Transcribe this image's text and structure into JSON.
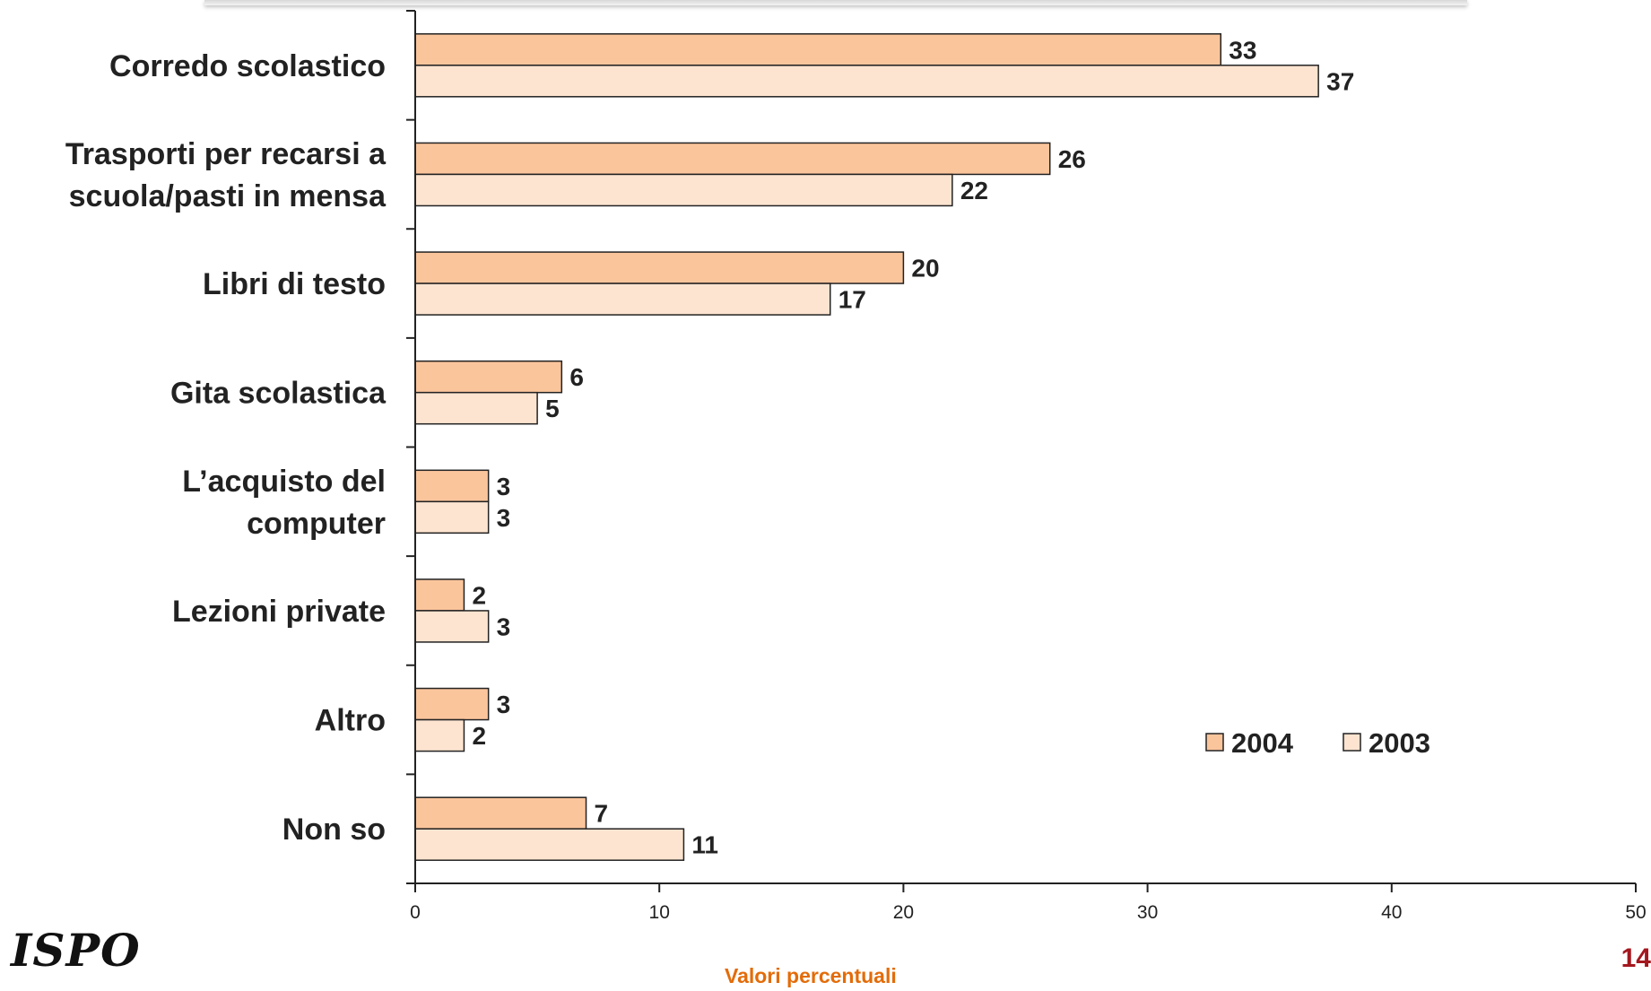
{
  "page": {
    "logo": "ISPO",
    "page_number": "14",
    "x_caption": "Valori percentuali"
  },
  "colors": {
    "series_2004": "#fbc59c",
    "series_2003": "#fde4d0",
    "caption": "#e36c09",
    "page_number": "#a3171e",
    "bar_border": "#222222"
  },
  "chart_data": {
    "type": "bar",
    "orientation": "horizontal",
    "categories": [
      [
        "Corredo scolastico"
      ],
      [
        "Trasporti per recarsi a",
        "scuola/pasti in mensa"
      ],
      [
        "Libri di testo"
      ],
      [
        "Gita scolastica"
      ],
      [
        "L’acquisto del",
        "computer"
      ],
      [
        "Lezioni private"
      ],
      [
        "Altro"
      ],
      [
        "Non so"
      ]
    ],
    "series": [
      {
        "name": "2004",
        "values": [
          33,
          26,
          20,
          6,
          3,
          2,
          3,
          7
        ]
      },
      {
        "name": "2003",
        "values": [
          37,
          22,
          17,
          5,
          3,
          3,
          2,
          11
        ]
      }
    ],
    "xlim": [
      0,
      50
    ],
    "xticks": [
      0,
      10,
      20,
      30,
      40,
      50
    ],
    "xlabel": "Valori percentuali",
    "ylabel": "",
    "title": "",
    "grid": false,
    "legend_position": "bottom-right",
    "data_labels": true
  }
}
